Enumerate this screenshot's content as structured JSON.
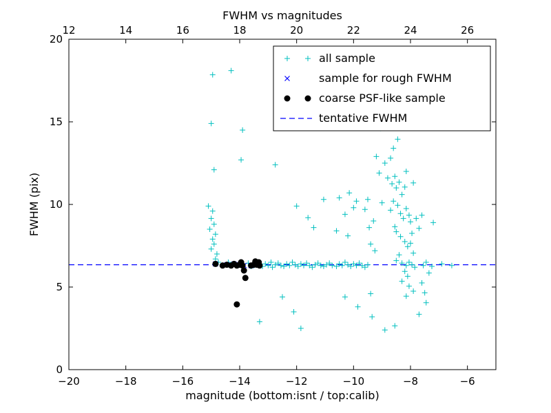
{
  "chart_data": {
    "type": "scatter",
    "title": "FWHM vs magnitudes",
    "xlabel": "magnitude (bottom:isnt / top:calib)",
    "ylabel": "FWHM (pix)",
    "xlim": [
      -20,
      -5
    ],
    "ylim": [
      0,
      20
    ],
    "grid": false,
    "legend_position": "upper right",
    "top_axis_offset": 32,
    "tentative_fwhm": 6.35,
    "x_ticks_bottom": {
      "values": [
        -20,
        -18,
        -16,
        -14,
        -12,
        -10,
        -8,
        -6
      ],
      "labels": [
        "−20",
        "−18",
        "−16",
        "−14",
        "−12",
        "−10",
        "−8",
        "−6"
      ]
    },
    "x_ticks_top": {
      "values": [
        12,
        14,
        16,
        18,
        20,
        22,
        24,
        26
      ],
      "labels": [
        "12",
        "14",
        "16",
        "18",
        "20",
        "22",
        "24",
        "26"
      ]
    },
    "y_ticks": {
      "values": [
        0,
        5,
        10,
        15,
        20
      ],
      "labels": [
        "0",
        "5",
        "10",
        "15",
        "20"
      ]
    },
    "colors": {
      "all_sample": "#00bfbf",
      "rough_fwhm": "#0000ff",
      "psf_like": "#000000",
      "tentative_line": "#0000ff"
    },
    "series": [
      {
        "name": "all sample",
        "marker": "plus",
        "color": "#00bfbf",
        "points": [
          [
            -14.95,
            17.85
          ],
          [
            -14.3,
            18.1
          ],
          [
            -15.0,
            14.9
          ],
          [
            -14.9,
            12.1
          ],
          [
            -15.1,
            9.9
          ],
          [
            -14.95,
            9.6
          ],
          [
            -15.0,
            9.15
          ],
          [
            -14.9,
            8.8
          ],
          [
            -15.05,
            8.5
          ],
          [
            -14.85,
            8.2
          ],
          [
            -14.95,
            7.9
          ],
          [
            -14.9,
            7.6
          ],
          [
            -15.0,
            7.3
          ],
          [
            -14.8,
            7.0
          ],
          [
            -14.85,
            6.7
          ],
          [
            -14.75,
            6.5
          ],
          [
            -13.9,
            14.5
          ],
          [
            -13.95,
            12.7
          ],
          [
            -14.4,
            6.5
          ],
          [
            -14.2,
            6.4
          ],
          [
            -14.05,
            6.3
          ],
          [
            -13.7,
            6.45
          ],
          [
            -13.6,
            6.25
          ],
          [
            -13.3,
            2.9
          ],
          [
            -11.85,
            2.5
          ],
          [
            -12.1,
            3.5
          ],
          [
            -12.5,
            4.4
          ],
          [
            -13.5,
            6.3
          ],
          [
            -13.4,
            6.45
          ],
          [
            -13.3,
            6.35
          ],
          [
            -13.2,
            6.25
          ],
          [
            -13.1,
            6.4
          ],
          [
            -13.0,
            6.3
          ],
          [
            -12.9,
            6.5
          ],
          [
            -12.85,
            6.2
          ],
          [
            -12.75,
            6.35
          ],
          [
            -12.65,
            6.45
          ],
          [
            -12.55,
            6.3
          ],
          [
            -12.45,
            6.25
          ],
          [
            -12.35,
            6.4
          ],
          [
            -12.25,
            6.3
          ],
          [
            -12.15,
            6.5
          ],
          [
            -12.05,
            6.35
          ],
          [
            -11.95,
            6.25
          ],
          [
            -11.85,
            6.4
          ],
          [
            -11.75,
            6.3
          ],
          [
            -11.65,
            6.45
          ],
          [
            -11.55,
            6.3
          ],
          [
            -11.45,
            6.2
          ],
          [
            -11.35,
            6.35
          ],
          [
            -11.25,
            6.45
          ],
          [
            -11.15,
            6.3
          ],
          [
            -11.05,
            6.25
          ],
          [
            -12.75,
            12.4
          ],
          [
            -12.0,
            9.9
          ],
          [
            -11.6,
            9.2
          ],
          [
            -11.4,
            8.6
          ],
          [
            -11.05,
            10.3
          ],
          [
            -10.95,
            6.35
          ],
          [
            -10.85,
            6.45
          ],
          [
            -10.75,
            6.3
          ],
          [
            -10.6,
            6.25
          ],
          [
            -10.5,
            6.4
          ],
          [
            -10.4,
            6.3
          ],
          [
            -10.3,
            6.5
          ],
          [
            -10.2,
            6.35
          ],
          [
            -10.1,
            6.25
          ],
          [
            -10.0,
            6.4
          ],
          [
            -9.9,
            6.3
          ],
          [
            -9.8,
            6.45
          ],
          [
            -9.7,
            6.3
          ],
          [
            -9.6,
            6.2
          ],
          [
            -9.5,
            6.35
          ],
          [
            -10.5,
            10.4
          ],
          [
            -10.3,
            9.4
          ],
          [
            -10.15,
            10.7
          ],
          [
            -10.0,
            9.8
          ],
          [
            -9.9,
            10.2
          ],
          [
            -10.6,
            8.4
          ],
          [
            -10.2,
            8.1
          ],
          [
            -10.3,
            4.4
          ],
          [
            -9.85,
            3.8
          ],
          [
            -9.35,
            3.2
          ],
          [
            -9.4,
            4.6
          ],
          [
            -8.9,
            2.4
          ],
          [
            -9.05,
            14.6
          ],
          [
            -8.45,
            13.95
          ],
          [
            -9.2,
            12.9
          ],
          [
            -8.9,
            12.5
          ],
          [
            -8.6,
            13.4
          ],
          [
            -8.7,
            12.8
          ],
          [
            -9.1,
            11.9
          ],
          [
            -8.8,
            11.6
          ],
          [
            -8.65,
            11.25
          ],
          [
            -8.55,
            11.7
          ],
          [
            -8.5,
            11.0
          ],
          [
            -8.4,
            11.35
          ],
          [
            -8.3,
            10.6
          ],
          [
            -8.2,
            11.05
          ],
          [
            -8.15,
            12.0
          ],
          [
            -7.9,
            11.3
          ],
          [
            -9.5,
            10.3
          ],
          [
            -9.6,
            9.7
          ],
          [
            -9.3,
            9.0
          ],
          [
            -9.45,
            8.6
          ],
          [
            -9.4,
            7.6
          ],
          [
            -9.25,
            7.2
          ],
          [
            -9.0,
            10.1
          ],
          [
            -8.6,
            10.2
          ],
          [
            -8.45,
            9.95
          ],
          [
            -8.7,
            9.65
          ],
          [
            -8.35,
            9.45
          ],
          [
            -8.25,
            9.15
          ],
          [
            -8.15,
            9.75
          ],
          [
            -8.05,
            9.35
          ],
          [
            -8.0,
            8.95
          ],
          [
            -8.55,
            8.65
          ],
          [
            -8.5,
            8.35
          ],
          [
            -8.35,
            8.05
          ],
          [
            -8.2,
            7.75
          ],
          [
            -8.1,
            7.45
          ],
          [
            -8.0,
            7.65
          ],
          [
            -7.95,
            8.25
          ],
          [
            -7.9,
            7.05
          ],
          [
            -8.4,
            6.95
          ],
          [
            -8.5,
            6.6
          ],
          [
            -8.3,
            6.45
          ],
          [
            -8.15,
            6.3
          ],
          [
            -8.05,
            6.5
          ],
          [
            -7.95,
            6.35
          ],
          [
            -7.85,
            6.2
          ],
          [
            -8.2,
            5.95
          ],
          [
            -8.1,
            5.65
          ],
          [
            -8.3,
            5.35
          ],
          [
            -8.05,
            5.05
          ],
          [
            -7.9,
            4.75
          ],
          [
            -8.15,
            4.45
          ],
          [
            -7.8,
            9.15
          ],
          [
            -7.7,
            8.55
          ],
          [
            -7.6,
            9.35
          ],
          [
            -7.2,
            8.9
          ],
          [
            -7.55,
            6.3
          ],
          [
            -7.45,
            6.5
          ],
          [
            -7.35,
            5.85
          ],
          [
            -7.25,
            6.25
          ],
          [
            -7.6,
            5.25
          ],
          [
            -7.5,
            4.65
          ],
          [
            -7.45,
            4.05
          ],
          [
            -7.7,
            3.35
          ],
          [
            -8.55,
            2.65
          ],
          [
            -6.9,
            6.4
          ],
          [
            -6.55,
            6.3
          ]
        ]
      },
      {
        "name": "sample for rough FWHM",
        "marker": "x",
        "color": "#0000ff",
        "points": [
          [
            -14.85,
            6.4
          ],
          [
            -14.45,
            6.35
          ],
          [
            -14.2,
            6.4
          ],
          [
            -14.0,
            6.35
          ],
          [
            -13.85,
            6.3
          ],
          [
            -13.6,
            6.3
          ],
          [
            -13.45,
            6.4
          ],
          [
            -13.35,
            6.35
          ]
        ]
      },
      {
        "name": "coarse PSF-like sample",
        "marker": "circle",
        "color": "#000000",
        "points": [
          [
            -14.85,
            6.4
          ],
          [
            -14.6,
            6.3
          ],
          [
            -14.45,
            6.35
          ],
          [
            -14.3,
            6.3
          ],
          [
            -14.2,
            6.4
          ],
          [
            -14.1,
            6.3
          ],
          [
            -14.0,
            6.35
          ],
          [
            -13.95,
            6.5
          ],
          [
            -13.9,
            6.3
          ],
          [
            -13.85,
            6.0
          ],
          [
            -13.8,
            5.55
          ],
          [
            -13.6,
            6.3
          ],
          [
            -13.5,
            6.35
          ],
          [
            -13.45,
            6.55
          ],
          [
            -13.4,
            6.35
          ],
          [
            -13.33,
            6.5
          ],
          [
            -13.3,
            6.3
          ],
          [
            -14.1,
            3.95
          ]
        ]
      },
      {
        "name": "tentative FWHM",
        "marker": "dashed-line",
        "color": "#0000ff",
        "y": 6.35
      }
    ]
  }
}
